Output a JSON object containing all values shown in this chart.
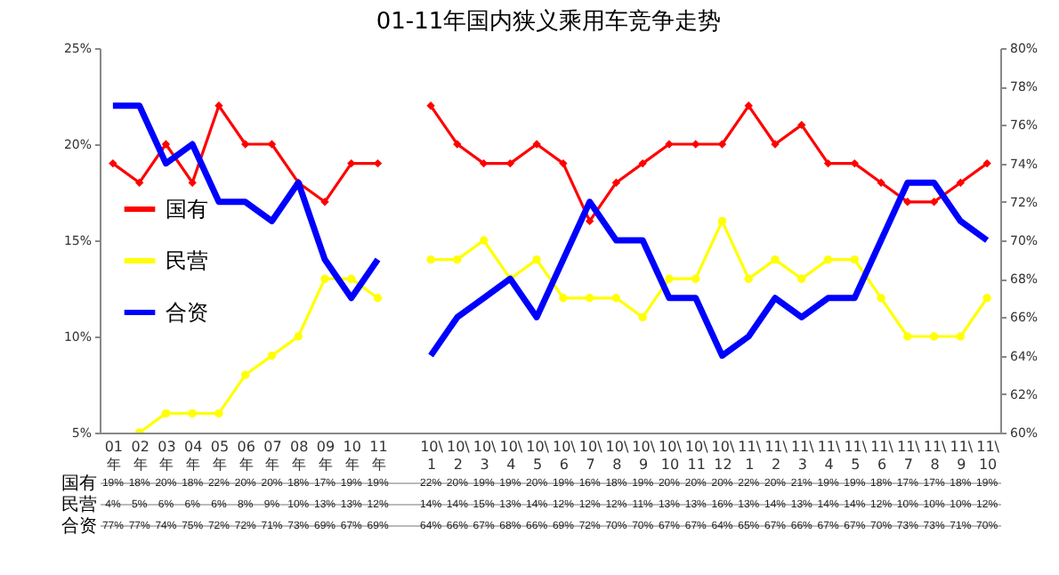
{
  "chart_data": {
    "type": "line",
    "title": "01-11年国内狭义乘用车竞争走势",
    "categories": [
      "01年",
      "02年",
      "03年",
      "04年",
      "05年",
      "06年",
      "07年",
      "08年",
      "09年",
      "10年",
      "11年",
      null,
      "10\\1",
      "10\\2",
      "10\\3",
      "10\\4",
      "10\\5",
      "10\\6",
      "10\\7",
      "10\\8",
      "10\\9",
      "10\\10",
      "10\\11",
      "10\\12",
      "11\\1",
      "11\\2",
      "11\\3",
      "11\\4",
      "11\\5",
      "11\\6",
      "11\\7",
      "11\\8",
      "11\\9",
      "11\\10"
    ],
    "series": [
      {
        "name": "国有",
        "color": "#ff0000",
        "marker": "diamond",
        "values": [
          19,
          18,
          20,
          18,
          22,
          20,
          20,
          18,
          17,
          19,
          19,
          null,
          22,
          20,
          19,
          19,
          20,
          19,
          16,
          18,
          19,
          20,
          20,
          20,
          22,
          20,
          21,
          19,
          19,
          18,
          17,
          17,
          18,
          19
        ],
        "value_labels": [
          "19%",
          "18%",
          "20%",
          "18%",
          "22%",
          "20%",
          "20%",
          "18%",
          "17%",
          "19%",
          "19%",
          null,
          "22%",
          "20%",
          "19%",
          "19%",
          "20%",
          "19%",
          "16%",
          "18%",
          "19%",
          "20%",
          "20%",
          "20%",
          "22%",
          "20%",
          "21%",
          "19%",
          "19%",
          "18%",
          "17%",
          "17%",
          "18%",
          "19%"
        ]
      },
      {
        "name": "民营",
        "color": "#ffff00",
        "marker": "circle",
        "values": [
          null,
          5,
          6,
          6,
          6,
          8,
          9,
          10,
          13,
          13,
          12,
          null,
          14,
          14,
          15,
          13,
          14,
          12,
          12,
          12,
          11,
          13,
          13,
          16,
          13,
          14,
          13,
          14,
          14,
          12,
          10,
          10,
          10,
          12
        ],
        "value_labels": [
          "4%",
          "5%",
          "6%",
          "6%",
          "6%",
          "8%",
          "9%",
          "10%",
          "13%",
          "13%",
          "12%",
          null,
          "14%",
          "14%",
          "15%",
          "13%",
          "14%",
          "12%",
          "12%",
          "12%",
          "11%",
          "13%",
          "13%",
          "16%",
          "13%",
          "14%",
          "13%",
          "14%",
          "14%",
          "12%",
          "10%",
          "10%",
          "10%",
          "12%"
        ]
      },
      {
        "name": "合资",
        "color": "#0000ff",
        "marker": "none",
        "axis": "y2",
        "values": [
          77,
          77,
          74,
          75,
          72,
          72,
          71,
          73,
          69,
          67,
          69,
          null,
          64,
          66,
          67,
          68,
          66,
          69,
          72,
          70,
          70,
          67,
          67,
          64,
          65,
          67,
          66,
          67,
          67,
          70,
          73,
          73,
          71,
          70
        ],
        "value_labels": [
          "77%",
          "77%",
          "74%",
          "75%",
          "72%",
          "72%",
          "71%",
          "73%",
          "69%",
          "67%",
          "69%",
          null,
          "64%",
          "66%",
          "67%",
          "68%",
          "66%",
          "69%",
          "72%",
          "70%",
          "70%",
          "67%",
          "67%",
          "64%",
          "65%",
          "67%",
          "66%",
          "67%",
          "67%",
          "70%",
          "73%",
          "73%",
          "71%",
          "70%"
        ]
      }
    ],
    "ylim": [
      5,
      25
    ],
    "yticks": [
      {
        "value": 5,
        "label": "5%"
      },
      {
        "value": 10,
        "label": "10%"
      },
      {
        "value": 15,
        "label": "15%"
      },
      {
        "value": 20,
        "label": "20%"
      },
      {
        "value": 25,
        "label": "25%"
      }
    ],
    "y2lim": [
      60,
      80
    ],
    "y2ticks": [
      {
        "value": 60,
        "label": "60%"
      },
      {
        "value": 62,
        "label": "62%"
      },
      {
        "value": 64,
        "label": "64%"
      },
      {
        "value": 66,
        "label": "66%"
      },
      {
        "value": 68,
        "label": "68%"
      },
      {
        "value": 70,
        "label": "70%"
      },
      {
        "value": 72,
        "label": "72%"
      },
      {
        "value": 74,
        "label": "74%"
      },
      {
        "value": 76,
        "label": "76%"
      },
      {
        "value": 78,
        "label": "78%"
      },
      {
        "value": 80,
        "label": "80%"
      }
    ],
    "legend": "left",
    "grid": false
  }
}
